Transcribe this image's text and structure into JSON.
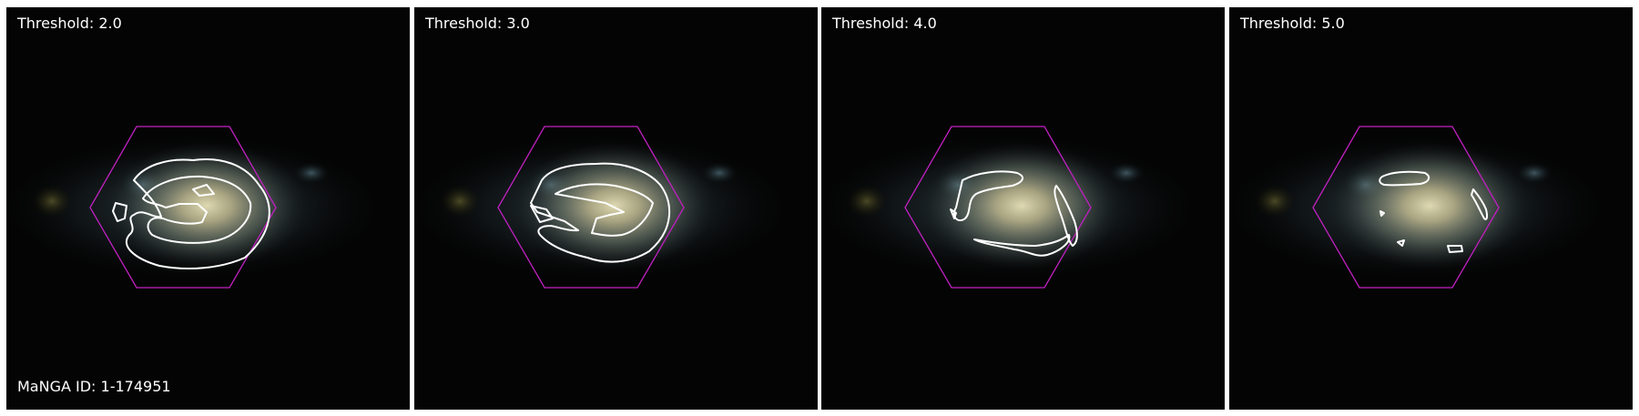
{
  "manga_id": "MaNGA ID: 1-174951",
  "hexagon_color": "#c020c0",
  "contour_color": "#ffffff",
  "panels": [
    {
      "threshold_label": "Threshold: 2.0"
    },
    {
      "threshold_label": "Threshold: 3.0"
    },
    {
      "threshold_label": "Threshold: 4.0"
    },
    {
      "threshold_label": "Threshold: 5.0"
    }
  ]
}
